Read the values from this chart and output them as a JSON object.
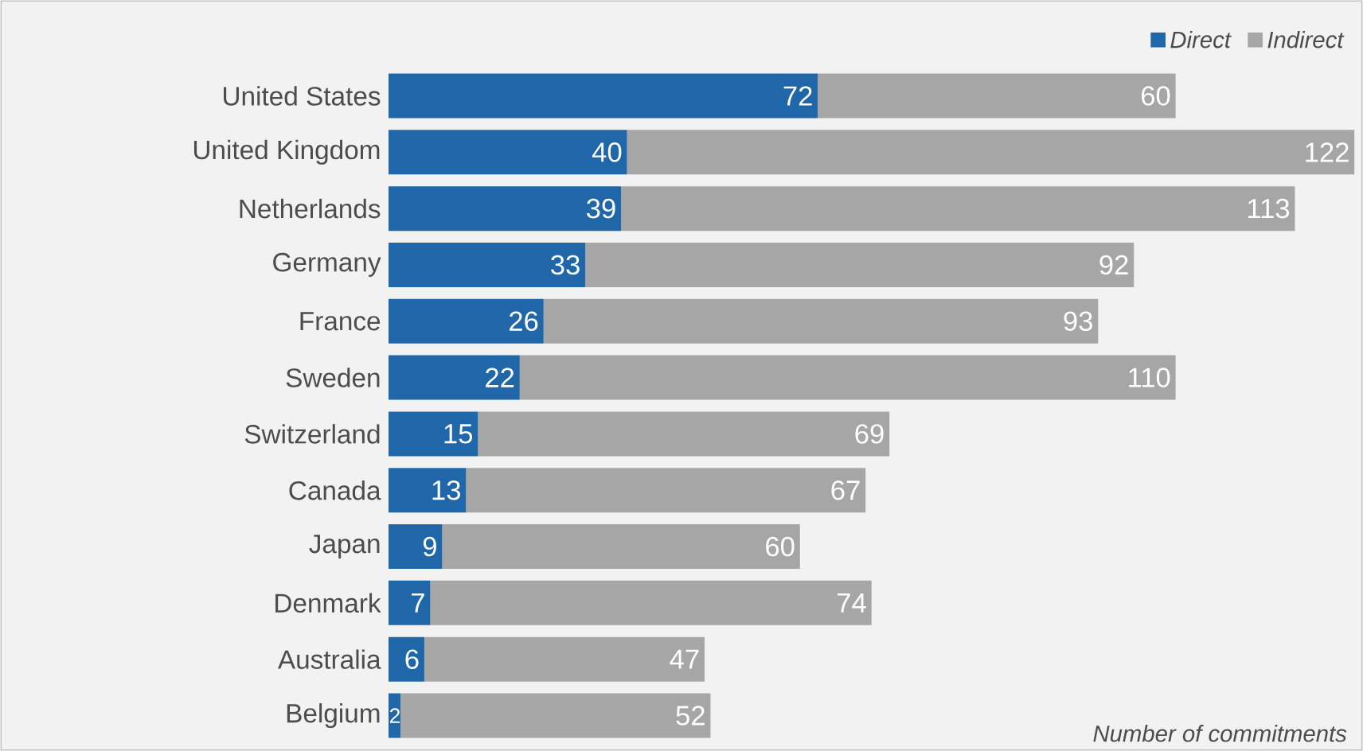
{
  "chart_data": {
    "type": "bar",
    "orientation": "horizontal",
    "stacked": true,
    "data_labels": true,
    "legend": "top right",
    "xlabel": "Number of commitments",
    "categories": [
      "United States",
      "United Kingdom",
      "Netherlands",
      "Germany",
      "France",
      "Sweden",
      "Switzerland",
      "Canada",
      "Japan",
      "Denmark",
      "Australia",
      "Belgium"
    ],
    "series": [
      {
        "name": "Direct",
        "color": "#1f67a8",
        "values": [
          72,
          40,
          39,
          33,
          26,
          22,
          15,
          13,
          9,
          7,
          6,
          2
        ]
      },
      {
        "name": "Indirect",
        "color": "#a6a6a6",
        "values": [
          60,
          122,
          113,
          92,
          93,
          110,
          69,
          67,
          60,
          74,
          47,
          52
        ]
      }
    ]
  }
}
